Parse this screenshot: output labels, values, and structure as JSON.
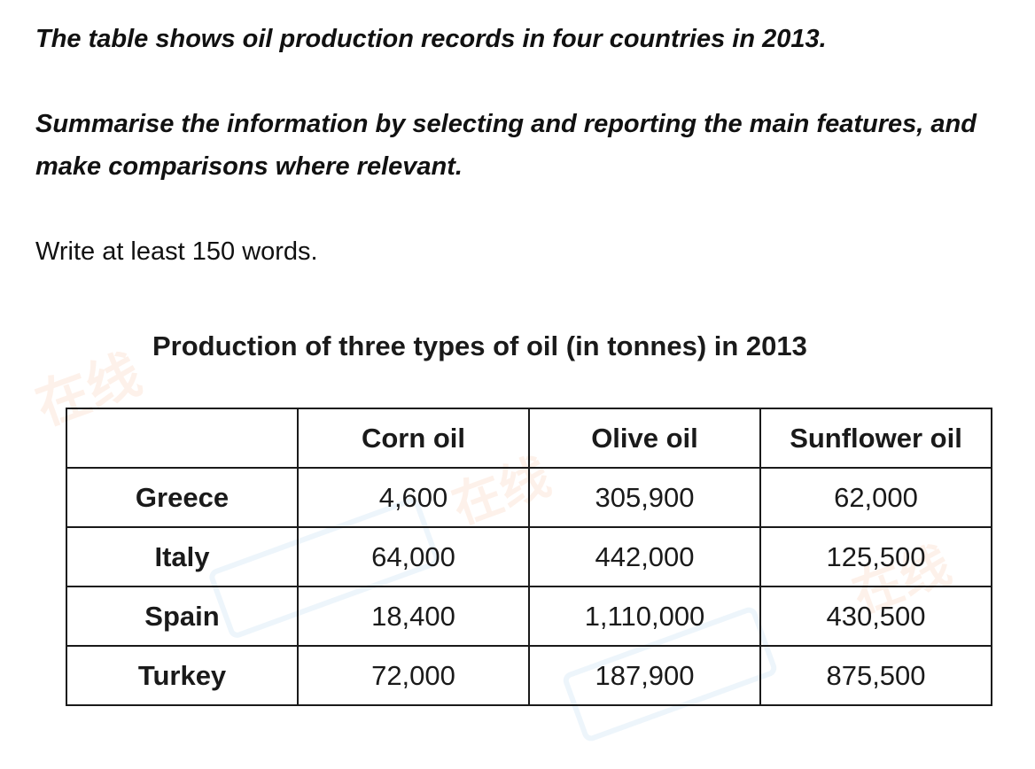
{
  "prompt": {
    "line1": "The table shows oil production records in four countries in 2013.",
    "line2": "Summarise the information by selecting and reporting the main features, and make comparisons where relevant.",
    "line3": "Write at least 150 words."
  },
  "table": {
    "title": "Production of three types of oil (in tonnes) in 2013",
    "headers": [
      "",
      "Corn oil",
      "Olive oil",
      "Sunflower oil"
    ],
    "rows": [
      {
        "country": "Greece",
        "values": [
          "4,600",
          "305,900",
          "62,000"
        ]
      },
      {
        "country": "Italy",
        "values": [
          "64,000",
          "442,000",
          "125,500"
        ]
      },
      {
        "country": "Spain",
        "values": [
          "18,400",
          "1,110,000",
          "430,500"
        ]
      },
      {
        "country": "Turkey",
        "values": [
          "72,000",
          "187,900",
          "875,500"
        ]
      }
    ]
  },
  "watermark": {
    "text": "在线"
  }
}
